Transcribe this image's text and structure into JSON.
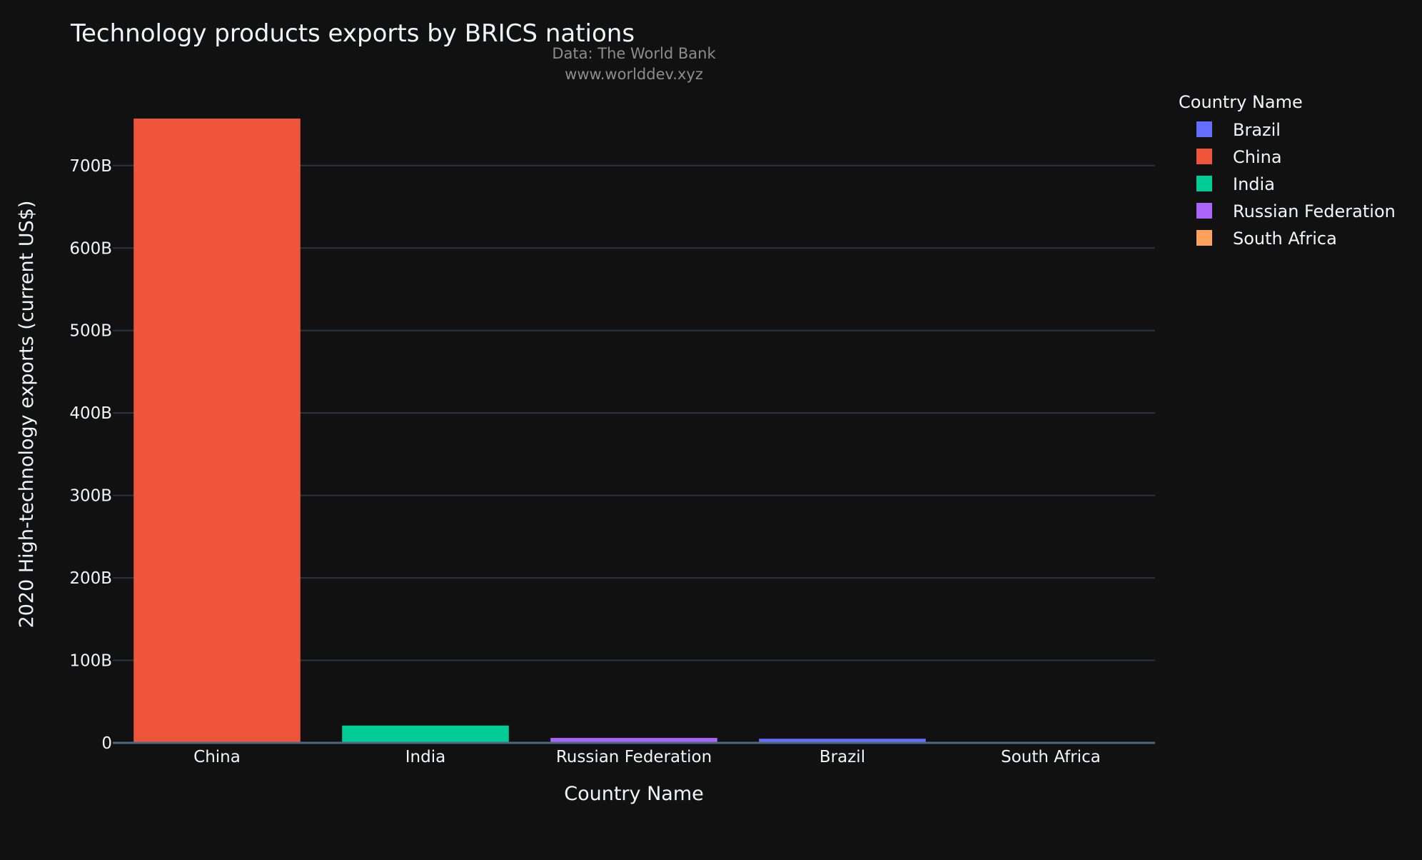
{
  "chart_data": {
    "type": "bar",
    "title": "Technology products exports by BRICS nations",
    "annotations": [
      "Data: The World Bank",
      "www.worlddev.xyz"
    ],
    "xlabel": "Country Name",
    "ylabel": "2020 High-technology exports (current US$)",
    "categories": [
      "China",
      "India",
      "Russian Federation",
      "Brazil",
      "South Africa"
    ],
    "values": [
      757000000000,
      21000000000,
      6000000000,
      5000000000,
      1000000000
    ],
    "ylim": [
      0,
      757000000000
    ],
    "yticks": [
      0,
      100000000000,
      200000000000,
      300000000000,
      400000000000,
      500000000000,
      600000000000,
      700000000000
    ],
    "ytick_labels": [
      "0",
      "100B",
      "200B",
      "300B",
      "400B",
      "500B",
      "600B",
      "700B"
    ],
    "grid": true,
    "legend": {
      "title": "Country Name",
      "placement": "right",
      "entries": [
        {
          "name": "Brazil",
          "color": "#636efa"
        },
        {
          "name": "China",
          "color": "#ef553b"
        },
        {
          "name": "India",
          "color": "#00cc96"
        },
        {
          "name": "Russian Federation",
          "color": "#ab63fa"
        },
        {
          "name": "South Africa",
          "color": "#ffa15a"
        }
      ]
    },
    "bar_colors": [
      "#ef553b",
      "#00cc96",
      "#ab63fa",
      "#636efa",
      "#ffa15a"
    ],
    "colors": {
      "background": "#111111",
      "grid": "#283442",
      "text": "#f2f5fa",
      "annotation": "#8c8c8c"
    }
  }
}
